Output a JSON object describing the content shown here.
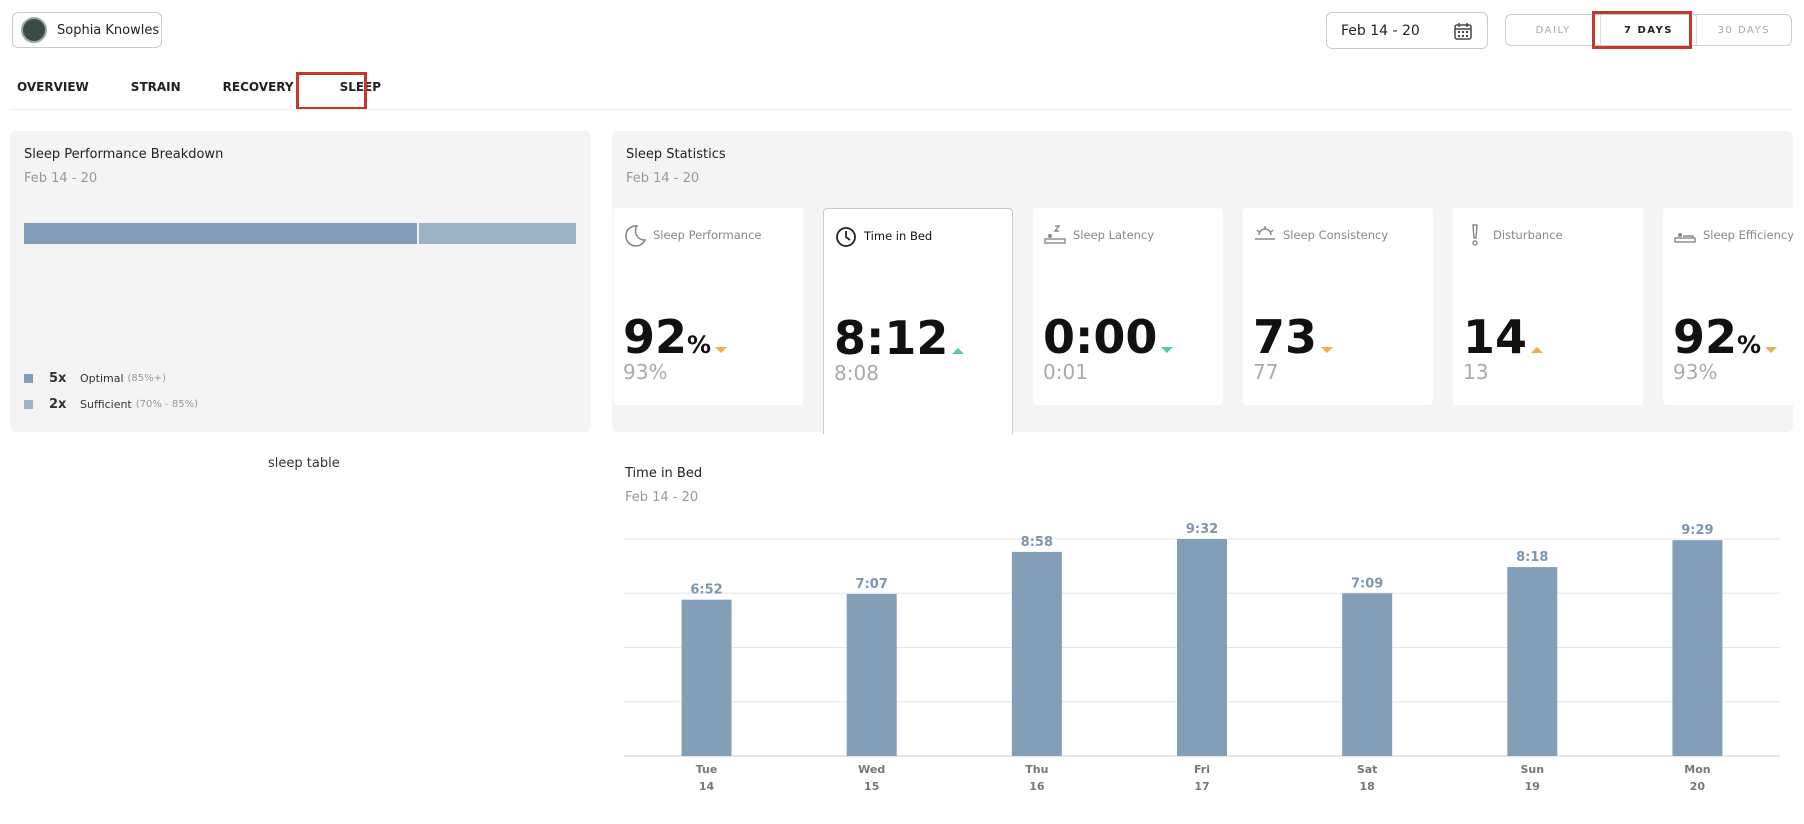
{
  "header": {
    "user_name": "Sophia Knowles",
    "date_range": "Feb 14 - 20",
    "periods": [
      "DAILY",
      "7 DAYS",
      "30 DAYS"
    ],
    "active_period": 1
  },
  "tabs": {
    "items": [
      "OVERVIEW",
      "STRAIN",
      "RECOVERY",
      "SLEEP"
    ],
    "active_tab": 3
  },
  "breakdown": {
    "title": "Sleep Performance Breakdown",
    "subtitle": "Feb 14 - 20",
    "items": [
      {
        "count": 5,
        "count_label": "5x",
        "name": "Optimal",
        "range": "(85%+)",
        "color": "#819db8"
      },
      {
        "count": 2,
        "count_label": "2x",
        "name": "Sufficient",
        "range": "(70% - 85%)",
        "color": "#9cb2c7"
      }
    ]
  },
  "sleep_table_label": "sleep table",
  "stats": {
    "title": "Sleep Statistics",
    "subtitle": "Feb 14 - 20",
    "selected_card": 1,
    "cards": [
      {
        "label": "Sleep Performance",
        "value": "92",
        "unit": "%",
        "trend": "down",
        "trend_color": "#e8b04a",
        "previous": "93%"
      },
      {
        "label": "Time in Bed",
        "value": "8:12",
        "trend": "up",
        "trend_color": "#5cc8a8",
        "previous": "8:08"
      },
      {
        "label": "Sleep Latency",
        "value": "0:00",
        "trend": "down",
        "trend_color": "#4fcf9e",
        "previous": "0:01"
      },
      {
        "label": "Sleep Consistency",
        "value": "73",
        "trend": "down",
        "trend_color": "#e8b04a",
        "previous": "77"
      },
      {
        "label": "Disturbance",
        "value": "14",
        "trend": "up",
        "trend_color": "#e8b04a",
        "previous": "13"
      },
      {
        "label": "Sleep Efficiency",
        "value": "92",
        "unit": "%",
        "trend": "down",
        "trend_color": "#e8b04a",
        "previous": "93%"
      }
    ]
  },
  "chart_data": {
    "type": "bar",
    "title": "Time in Bed",
    "subtitle": "Feb 14 - 20",
    "categories": [
      "Tue",
      "Wed",
      "Thu",
      "Fri",
      "Sat",
      "Sun",
      "Mon"
    ],
    "category_dates": [
      "14",
      "15",
      "16",
      "17",
      "18",
      "19",
      "20"
    ],
    "values": [
      412,
      427,
      538,
      572,
      429,
      498,
      569
    ],
    "value_labels": [
      "6:52",
      "7:07",
      "8:58",
      "9:32",
      "7:09",
      "8:18",
      "9:29"
    ],
    "color": "#839fb8",
    "label_color": "#7d97b0",
    "ylim": [
      0,
      572
    ],
    "yticks": [
      0,
      143,
      286,
      429,
      572
    ],
    "grid": true
  }
}
